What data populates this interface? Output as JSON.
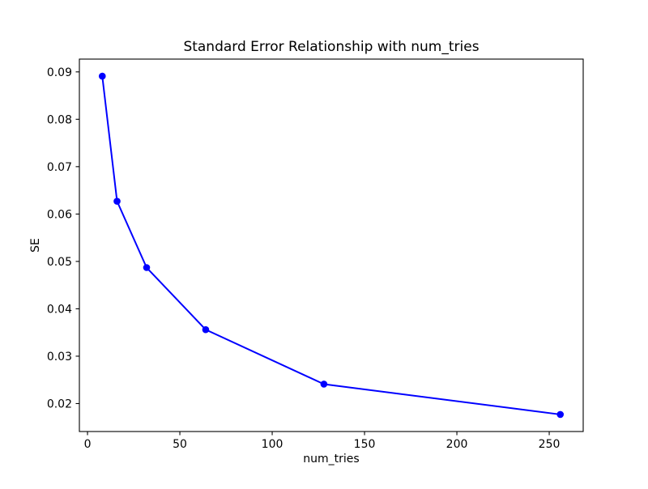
{
  "figure": {
    "colors": {
      "background": "#ffffff",
      "axes": "#000000",
      "text": "#000000",
      "series": "#0000ff"
    }
  },
  "chart_data": {
    "type": "line",
    "title": "Standard Error Relationship with num_tries",
    "xlabel": "num_tries",
    "ylabel": "SE",
    "x": [
      8,
      16,
      32,
      64,
      128,
      256
    ],
    "y": [
      0.0891,
      0.0627,
      0.0487,
      0.0356,
      0.0241,
      0.0177
    ],
    "series": [
      {
        "name": "SE",
        "marker": "circle",
        "color": "#0000ff"
      }
    ],
    "xlim": [
      -4.4,
      268.4
    ],
    "ylim": [
      0.0141,
      0.0927
    ],
    "xticks": [
      0,
      50,
      100,
      150,
      200,
      250
    ],
    "xtick_labels": [
      "0",
      "50",
      "100",
      "150",
      "200",
      "250"
    ],
    "yticks": [
      0.02,
      0.03,
      0.04,
      0.05,
      0.06,
      0.07,
      0.08,
      0.09
    ],
    "ytick_labels": [
      "0.02",
      "0.03",
      "0.04",
      "0.05",
      "0.06",
      "0.07",
      "0.08",
      "0.09"
    ],
    "grid": false,
    "legend": "none"
  }
}
